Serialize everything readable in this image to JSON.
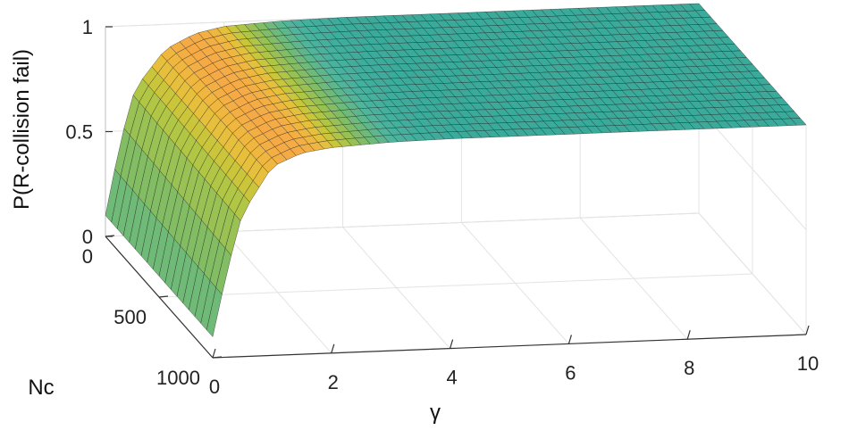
{
  "chart_data": {
    "type": "surface",
    "title": "",
    "xlabel": "γ",
    "ylabel": "Nc",
    "zlabel": "P(R-collision fail)",
    "xlim": [
      0,
      10
    ],
    "ylim": [
      0,
      1000
    ],
    "zlim": [
      0,
      1
    ],
    "x_ticks": [
      "0",
      "2",
      "4",
      "6",
      "8",
      "10"
    ],
    "y_ticks": [
      "0",
      "500",
      "1000"
    ],
    "z_ticks": [
      "0",
      "0.5",
      "1"
    ],
    "grid": true,
    "colormap": "parula",
    "surface_values": {
      "gamma": [
        0,
        0.25,
        0.5,
        1,
        1.5,
        2,
        3,
        4,
        6,
        8,
        10
      ],
      "nc": [
        0,
        1000
      ],
      "p_at_nc_0": [
        0.1,
        0.45,
        0.7,
        0.88,
        0.95,
        0.98,
        0.995,
        1,
        1,
        1,
        1
      ],
      "p_at_nc_1000": [
        0.1,
        0.42,
        0.68,
        0.9,
        0.96,
        0.98,
        0.995,
        1,
        1,
        1,
        1
      ]
    }
  }
}
